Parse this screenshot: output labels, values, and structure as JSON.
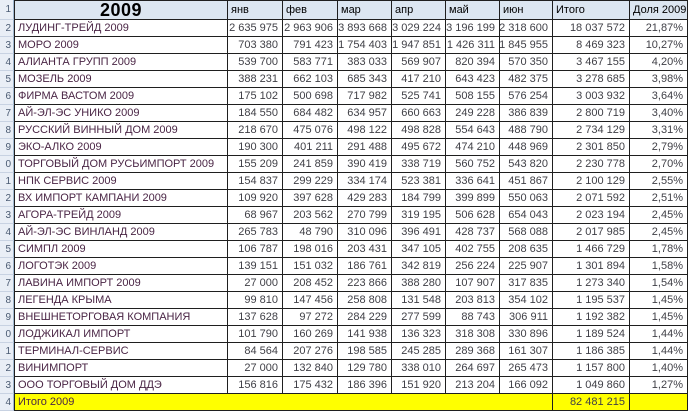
{
  "sheet": {
    "title": "2009",
    "header_row_number": "1",
    "columns": {
      "months": [
        "янв",
        "фев",
        "мар",
        "апр",
        "май",
        "июн"
      ],
      "total_label": "Итого",
      "share_label": "Доля 2009"
    },
    "rows": [
      {
        "row_number": "2",
        "company": "ЛУДИНГ-ТРЕЙД 2009",
        "monthly": [
          "2 635 975",
          "2 963 906",
          "3 893 668",
          "3 029 224",
          "3 196 199",
          "2 318 600"
        ],
        "total": "18 037 572",
        "share": "21,87%"
      },
      {
        "row_number": "3",
        "company": "МОРО 2009",
        "monthly": [
          "703 380",
          "791 423",
          "1 754 403",
          "1 947 851",
          "1 426 311",
          "1 845 955"
        ],
        "total": "8 469 323",
        "share": "10,27%"
      },
      {
        "row_number": "4",
        "company": "АЛИАНТА ГРУПП 2009",
        "monthly": [
          "539 700",
          "583 771",
          "383 033",
          "569 907",
          "820 394",
          "570 350"
        ],
        "total": "3 467 155",
        "share": "4,20%"
      },
      {
        "row_number": "5",
        "company": "МОЗЕЛЬ 2009",
        "monthly": [
          "388 231",
          "662 103",
          "685 343",
          "417 210",
          "643 423",
          "482 375"
        ],
        "total": "3 278 685",
        "share": "3,98%"
      },
      {
        "row_number": "6",
        "company": "ФИРМА ВАСТОМ 2009",
        "monthly": [
          "175 102",
          "500 698",
          "717 982",
          "525 741",
          "508 155",
          "576 254"
        ],
        "total": "3 003 932",
        "share": "3,64%"
      },
      {
        "row_number": "7",
        "company": "АЙ-ЭЛ-ЭС УНИКО 2009",
        "monthly": [
          "184 550",
          "684 482",
          "634 957",
          "660 663",
          "249 228",
          "386 839"
        ],
        "total": "2 800 719",
        "share": "3,40%"
      },
      {
        "row_number": "8",
        "company": "РУССКИЙ ВИННЫЙ ДОМ 2009",
        "monthly": [
          "218 670",
          "475 076",
          "498 122",
          "498 828",
          "554 643",
          "488 790"
        ],
        "total": "2 734 129",
        "share": "3,31%"
      },
      {
        "row_number": "9",
        "company": "ЭКО-АЛКО 2009",
        "monthly": [
          "190 300",
          "401 211",
          "291 488",
          "495 672",
          "474 210",
          "448 969"
        ],
        "total": "2 301 850",
        "share": "2,79%"
      },
      {
        "row_number": "0",
        "company": "ТОРГОВЫЙ ДОМ РУСЬИМПОРТ 2009",
        "monthly": [
          "155 209",
          "241 859",
          "390 419",
          "338 719",
          "560 752",
          "543 820"
        ],
        "total": "2 230 778",
        "share": "2,70%"
      },
      {
        "row_number": "1",
        "company": "НПК СЕРВИС 2009",
        "monthly": [
          "154 837",
          "299 229",
          "334 174",
          "523 381",
          "336 641",
          "451 867"
        ],
        "total": "2 100 129",
        "share": "2,55%"
      },
      {
        "row_number": "2",
        "company": "ВХ ИМПОРТ КАМПАНИ 2009",
        "monthly": [
          "109 920",
          "397 628",
          "429 283",
          "184 799",
          "399 899",
          "550 063"
        ],
        "total": "2 071 592",
        "share": "2,51%"
      },
      {
        "row_number": "3",
        "company": "АГОРА-ТРЕЙД 2009",
        "monthly": [
          "68 967",
          "203 562",
          "270 799",
          "319 195",
          "506 628",
          "654 043"
        ],
        "total": "2 023 194",
        "share": "2,45%"
      },
      {
        "row_number": "4",
        "company": "АЙ-ЭЛ-ЭС ВИНЛАНД 2009",
        "monthly": [
          "265 783",
          "48 790",
          "310 096",
          "396 491",
          "428 737",
          "568 088"
        ],
        "total": "2 017 985",
        "share": "2,45%"
      },
      {
        "row_number": "5",
        "company": "СИМПЛ 2009",
        "monthly": [
          "106 787",
          "198 016",
          "203 431",
          "347 105",
          "402 755",
          "208 635"
        ],
        "total": "1 466 729",
        "share": "1,78%"
      },
      {
        "row_number": "6",
        "company": "ЛОГОТЭК 2009",
        "monthly": [
          "139 151",
          "151 032",
          "186 761",
          "342 819",
          "256 224",
          "225 907"
        ],
        "total": "1 301 894",
        "share": "1,58%"
      },
      {
        "row_number": "7",
        "company": "ЛАВИНА ИМПОРТ 2009",
        "monthly": [
          "27 000",
          "208 452",
          "223 866",
          "388 280",
          "107 907",
          "317 835"
        ],
        "total": "1 273 340",
        "share": "1,54%"
      },
      {
        "row_number": "8",
        "company": "ЛЕГЕНДА КРЫМА",
        "monthly": [
          "99 810",
          "147 456",
          "258 808",
          "131 548",
          "203 813",
          "354 102"
        ],
        "total": "1 195 537",
        "share": "1,45%"
      },
      {
        "row_number": "9",
        "company": "ВНЕШНЕТОРГОВАЯ КОМПАНИЯ",
        "monthly": [
          "137 628",
          "97 272",
          "284 229",
          "277 599",
          "88 743",
          "306 911"
        ],
        "total": "1 192 382",
        "share": "1,45%"
      },
      {
        "row_number": "0",
        "company": "ЛОДЖИКАЛ ИМПОРТ",
        "monthly": [
          "101 790",
          "160 269",
          "141 938",
          "136 323",
          "318 308",
          "330 896"
        ],
        "total": "1 189 524",
        "share": "1,44%"
      },
      {
        "row_number": "1",
        "company": "ТЕРМИНАЛ-СЕРВИС",
        "monthly": [
          "84 564",
          "207 276",
          "198 585",
          "245 285",
          "289 368",
          "161 307"
        ],
        "total": "1 186 385",
        "share": "1,44%"
      },
      {
        "row_number": "2",
        "company": "ВИНИМПОРТ",
        "monthly": [
          "27 000",
          "132 840",
          "129 780",
          "338 010",
          "264 697",
          "265 473"
        ],
        "total": "1 157 800",
        "share": "1,40%"
      },
      {
        "row_number": "3",
        "company": "ООО ТОРГОВЫЙ ДОМ ДДЭ",
        "monthly": [
          "156 816",
          "175 432",
          "186 396",
          "151 920",
          "213 204",
          "166 092"
        ],
        "total": "1 049 860",
        "share": "1,27%"
      }
    ],
    "footer": {
      "row_number": "4",
      "label": "Итого 2009",
      "total": "82 481 215",
      "share": ""
    }
  },
  "colors": {
    "highlight": "#ffff00",
    "header_fill": "#dce6f1",
    "rownum_fill": "#e9eef6",
    "grid": "#1f1f1f",
    "company_text": "#4a2545",
    "number_text": "#3f3f46"
  }
}
